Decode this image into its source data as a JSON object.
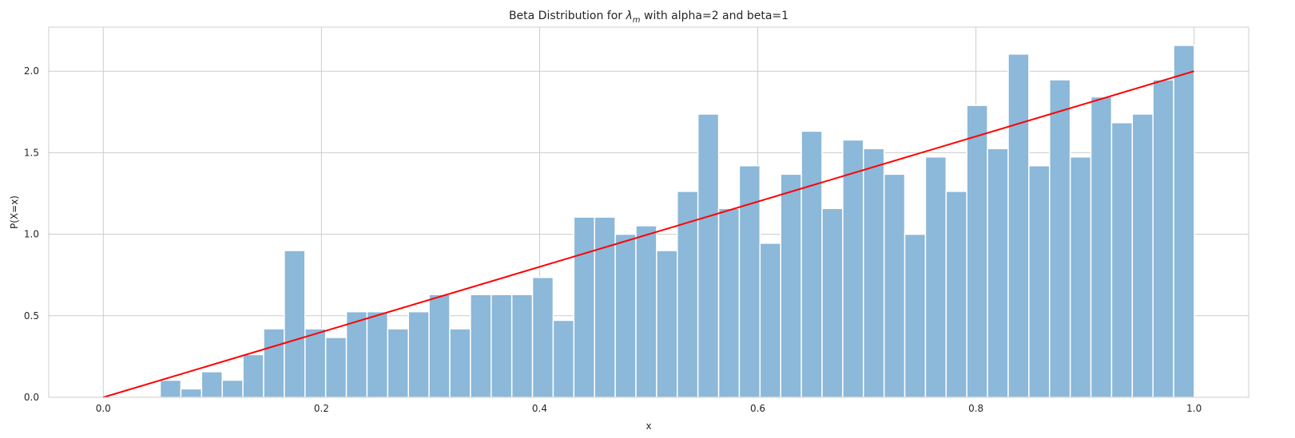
{
  "chart_data": {
    "type": "bar",
    "title": "Beta Distribution for λm with alpha=2 and beta=1",
    "title_parts": {
      "prefix": "Beta Distribution for ",
      "symbol": "λ",
      "subscript": "m",
      "suffix": " with alpha=2 and beta=1"
    },
    "xlabel": "x",
    "ylabel": "P(X=x)",
    "xlim": [
      -0.05,
      1.05
    ],
    "ylim": [
      0,
      2.27
    ],
    "xticks": [
      0.0,
      0.2,
      0.4,
      0.6,
      0.8,
      1.0
    ],
    "xtick_labels": [
      "0.0",
      "0.2",
      "0.4",
      "0.6",
      "0.8",
      "1.0"
    ],
    "yticks": [
      0.0,
      0.5,
      1.0,
      1.5,
      2.0
    ],
    "ytick_labels": [
      "0.0",
      "0.5",
      "1.0",
      "1.5",
      "2.0"
    ],
    "grid": true,
    "histogram": {
      "bin_start": 0.0522,
      "bin_width": 0.01896,
      "color": "#8cb8d9",
      "values": [
        0.105,
        0.052,
        0.157,
        0.105,
        0.262,
        0.42,
        0.9,
        0.42,
        0.367,
        0.525,
        0.525,
        0.42,
        0.525,
        0.63,
        0.42,
        0.63,
        0.63,
        0.63,
        0.735,
        0.472,
        1.105,
        1.105,
        1.0,
        1.052,
        0.9,
        1.263,
        1.737,
        1.158,
        1.42,
        0.945,
        1.368,
        1.632,
        1.158,
        1.578,
        1.525,
        1.368,
        1.0,
        1.474,
        1.263,
        1.79,
        1.525,
        2.105,
        1.42,
        1.947,
        1.474,
        1.842,
        1.684,
        1.737,
        1.947,
        2.158
      ]
    },
    "pdf_line": {
      "color": "#ff0000",
      "x": [
        0.0,
        1.0
      ],
      "y": [
        0.0,
        2.0
      ]
    }
  }
}
